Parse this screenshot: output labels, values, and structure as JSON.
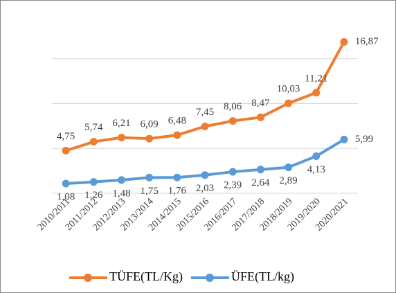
{
  "chart_data": {
    "type": "line",
    "categories": [
      "2010/2011",
      "2011/2012",
      "2012/2013",
      "2013/2014",
      "2014/2015",
      "2015/2016",
      "2016/2017",
      "2017/2018",
      "2018/2019",
      "2019/2020",
      "2020/2021"
    ],
    "series": [
      {
        "name": "TÜFE(TL/Kg)",
        "color": "#ed7d31",
        "values": [
          4.75,
          5.74,
          6.21,
          6.09,
          6.48,
          7.45,
          8.06,
          8.47,
          10.03,
          11.21,
          16.87
        ],
        "value_labels": [
          "4,75",
          "5,74",
          "6,21",
          "6,09",
          "6,48",
          "7,45",
          "8,06",
          "8,47",
          "10,03",
          "11,21",
          "16,87"
        ]
      },
      {
        "name": "ÜFE(TL/kg)",
        "color": "#5b9bd5",
        "values": [
          1.08,
          1.26,
          1.48,
          1.75,
          1.76,
          2.03,
          2.39,
          2.64,
          2.89,
          4.13,
          5.99
        ],
        "value_labels": [
          "1,08",
          "1,26",
          "1,48",
          "1,75",
          "1,76",
          "2,03",
          "2,39",
          "2,64",
          "2,89",
          "4,13",
          "5,99"
        ]
      }
    ],
    "ylim": [
      0,
      20
    ],
    "yticks": [
      0,
      5,
      10,
      15
    ],
    "grid": true,
    "legend": "bottom"
  }
}
